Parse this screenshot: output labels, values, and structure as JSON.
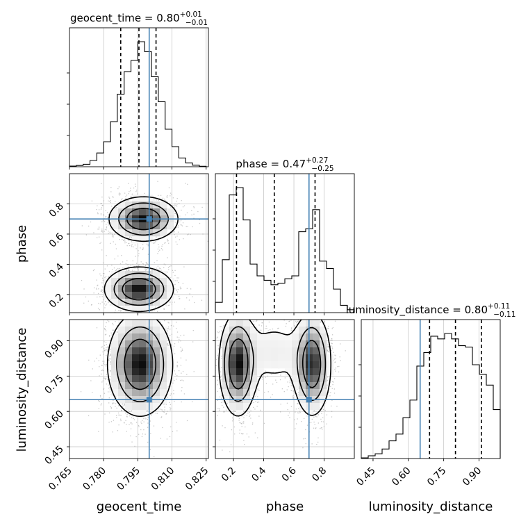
{
  "colors": {
    "truth": "#4682b4",
    "hist": "#000000",
    "grid": "#c8c8c8",
    "scatter": "#9a9a9a"
  },
  "params": [
    "geocent_time",
    "phase",
    "luminosity_distance"
  ],
  "truths": {
    "geocent_time": 0.8,
    "phase": 0.7,
    "luminosity_distance": 0.65
  },
  "chart_data": {
    "type": "corner",
    "titles": [
      {
        "param": "geocent_time",
        "base": "geocent_time = 0.80",
        "plus": "+0.01",
        "minus": "−0.01"
      },
      {
        "param": "phase",
        "base": "phase = 0.47",
        "plus": "+0.27",
        "minus": "−0.25"
      },
      {
        "param": "luminosity_distance",
        "base": "luminosity_distance = 0.80",
        "plus": "+0.11",
        "minus": "−0.11"
      }
    ],
    "axes": {
      "geocent_time": {
        "range": [
          0.765,
          0.826
        ],
        "ticks": [
          0.765,
          0.78,
          0.795,
          0.81,
          0.825
        ],
        "tick_labels": [
          "0.765",
          "0.780",
          "0.795",
          "0.810",
          "0.825"
        ]
      },
      "phase": {
        "range": [
          0.08,
          1.0
        ],
        "ticks": [
          0.2,
          0.4,
          0.6,
          0.8
        ],
        "tick_labels": [
          "0.2",
          "0.4",
          "0.6",
          "0.8"
        ]
      },
      "luminosity_distance": {
        "range": [
          0.4,
          0.99
        ],
        "ticks": [
          0.45,
          0.6,
          0.75,
          0.9
        ],
        "tick_labels": [
          "0.45",
          "0.60",
          "0.75",
          "0.90"
        ]
      }
    },
    "quantiles": {
      "geocent_time": [
        0.7875,
        0.7955,
        0.803
      ],
      "phase": [
        0.22,
        0.47,
        0.74
      ],
      "luminosity_distance": [
        0.69,
        0.8,
        0.91
      ]
    },
    "histograms": {
      "geocent_time": {
        "edges": [
          0.765,
          0.768,
          0.771,
          0.774,
          0.777,
          0.78,
          0.783,
          0.786,
          0.789,
          0.792,
          0.795,
          0.798,
          0.801,
          0.804,
          0.807,
          0.81,
          0.813,
          0.816,
          0.819,
          0.822,
          0.825
        ],
        "counts": [
          0.005,
          0.01,
          0.02,
          0.05,
          0.11,
          0.2,
          0.36,
          0.58,
          0.76,
          0.85,
          1.0,
          0.92,
          0.72,
          0.52,
          0.3,
          0.16,
          0.07,
          0.03,
          0.012,
          0.004
        ]
      },
      "phase": {
        "edges": [
          0.08,
          0.126,
          0.172,
          0.218,
          0.264,
          0.31,
          0.356,
          0.402,
          0.448,
          0.494,
          0.54,
          0.586,
          0.632,
          0.678,
          0.724,
          0.77,
          0.816,
          0.862,
          0.908,
          0.954,
          1.0
        ],
        "counts": [
          0.07,
          0.36,
          0.8,
          0.85,
          0.63,
          0.33,
          0.25,
          0.22,
          0.19,
          0.2,
          0.23,
          0.25,
          0.55,
          0.57,
          0.7,
          0.35,
          0.3,
          0.16,
          0.05,
          0.02
        ]
      },
      "luminosity_distance": {
        "edges": [
          0.4,
          0.4295,
          0.459,
          0.4885,
          0.518,
          0.5475,
          0.577,
          0.6065,
          0.636,
          0.6655,
          0.695,
          0.7245,
          0.754,
          0.7835,
          0.813,
          0.8425,
          0.872,
          0.9015,
          0.931,
          0.9605,
          0.99
        ],
        "counts": [
          0.005,
          0.02,
          0.035,
          0.07,
          0.13,
          0.18,
          0.3,
          0.43,
          0.68,
          0.78,
          0.9,
          0.88,
          0.92,
          0.88,
          0.83,
          0.82,
          0.69,
          0.62,
          0.54,
          0.36
        ]
      }
    },
    "panels_2d": [
      {
        "x": "geocent_time",
        "y": "phase",
        "blobs": [
          {
            "cx": 0.7975,
            "cy": 0.7,
            "sx": 0.0072,
            "sy": 0.07,
            "weight": 1.0,
            "xy_tilt": 0
          },
          {
            "cx": 0.7955,
            "cy": 0.235,
            "sx": 0.0072,
            "sy": 0.07,
            "weight": 1.0,
            "xy_tilt": 0
          }
        ]
      },
      {
        "x": "geocent_time",
        "y": "luminosity_distance",
        "blobs": [
          {
            "cx": 0.796,
            "cy": 0.8,
            "sx": 0.0068,
            "sy": 0.105,
            "weight": 1.0,
            "xy_tilt": 0
          }
        ]
      },
      {
        "x": "phase",
        "y": "luminosity_distance",
        "blobs": [
          {
            "cx": 0.23,
            "cy": 0.8,
            "sx": 0.06,
            "sy": 0.105,
            "weight": 1.0,
            "xy_tilt": 0
          },
          {
            "cx": 0.72,
            "cy": 0.8,
            "sx": 0.06,
            "sy": 0.105,
            "weight": 0.95,
            "xy_tilt": 0
          },
          {
            "cx": 0.47,
            "cy": 0.85,
            "sx": 0.13,
            "sy": 0.09,
            "weight": 0.18,
            "xy_tilt": 0
          }
        ]
      }
    ],
    "grid": true,
    "legend": "none"
  }
}
